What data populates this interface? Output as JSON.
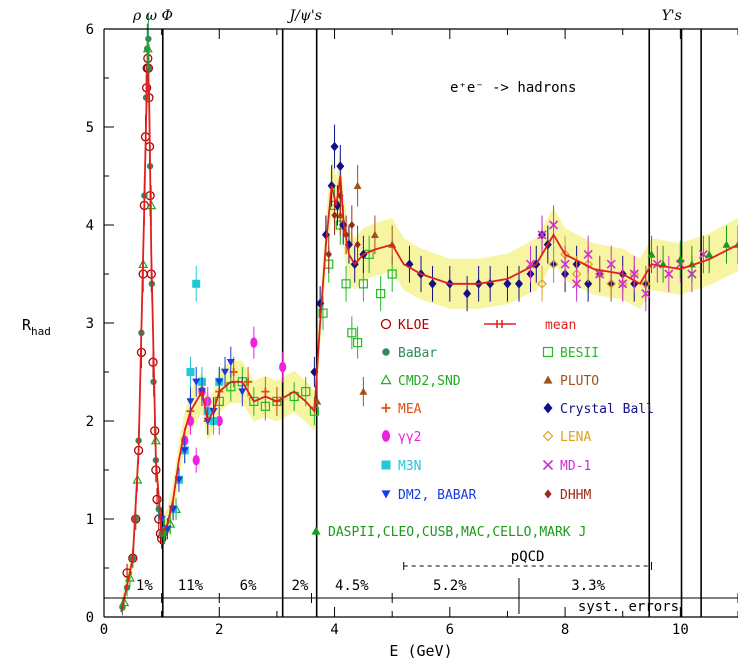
{
  "chart_data": {
    "type": "scatter",
    "xlabel": "E (GeV)",
    "ylabel_main": "R",
    "ylabel_sub": "had",
    "xlim": [
      0,
      11
    ],
    "ylim": [
      0,
      6
    ],
    "xticks": [
      0,
      2,
      4,
      6,
      8,
      10
    ],
    "yticks": [
      0,
      1,
      2,
      3,
      4,
      5,
      6
    ],
    "grid": false,
    "legend_position": "center-right",
    "process_label": "e⁺e⁻ -> hadrons",
    "resonance_labels": [
      {
        "text": "ρ ω Φ",
        "x": 0.85
      },
      {
        "text": "J/ψ's",
        "x": 3.5
      },
      {
        "text": "Υ's",
        "x": 9.85
      }
    ],
    "resonance_lines_x": [
      1.02,
      3.1,
      3.69,
      9.46,
      10.02,
      10.36
    ],
    "pqcd_label": "pQCD",
    "pqcd_range": [
      5.2,
      9.5
    ],
    "syst_label": "syst. errors",
    "syst_boundaries": [
      1.0,
      2.0,
      3.1,
      3.6,
      5.0,
      7.2,
      11.0
    ],
    "syst_values": [
      {
        "text": "1%",
        "x": 0.7
      },
      {
        "text": "11%",
        "x": 1.5
      },
      {
        "text": "6%",
        "x": 2.5
      },
      {
        "text": "2%",
        "x": 3.4
      },
      {
        "text": "4.5%",
        "x": 4.3
      },
      {
        "text": "5.2%",
        "x": 6.0
      },
      {
        "text": "3.3%",
        "x": 8.4
      }
    ],
    "legend": [
      {
        "name": "KLOE",
        "color": "#b00000",
        "marker": "circle-open"
      },
      {
        "name": "mean",
        "color": "#e02020",
        "marker": "line-cross"
      },
      {
        "name": "BaBar",
        "color": "#2e8b57",
        "marker": "dot"
      },
      {
        "name": "BESII",
        "color": "#22bb22",
        "marker": "square-open"
      },
      {
        "name": "CMD2,SND",
        "color": "#22aa22",
        "marker": "triangle-open"
      },
      {
        "name": "PLUTO",
        "color": "#a0521a",
        "marker": "triangle"
      },
      {
        "name": "MEA",
        "color": "#e05010",
        "marker": "plus"
      },
      {
        "name": "Crystal Ball",
        "color": "#10108a",
        "marker": "diamond"
      },
      {
        "name": "γγ2",
        "color": "#ee22dd",
        "marker": "ellipse"
      },
      {
        "name": "LENA",
        "color": "#e0a020",
        "marker": "diamond-open"
      },
      {
        "name": "M3N",
        "color": "#20c8d8",
        "marker": "square"
      },
      {
        "name": "MD-1",
        "color": "#d030d0",
        "marker": "cross"
      },
      {
        "name": "DM2, BABAR",
        "color": "#1a3cdc",
        "marker": "triangle-down"
      },
      {
        "name": "DHHM",
        "color": "#9a2a1a",
        "marker": "diamond-small"
      },
      {
        "name": "DASPII,CLEO,CUSB,MAC,CELLO,MARK J",
        "color": "#1a9a1a",
        "marker": "triangle"
      }
    ],
    "series": [
      {
        "name": "KLOE",
        "x": [
          0.4,
          0.5,
          0.55,
          0.6,
          0.65,
          0.68,
          0.7,
          0.72,
          0.74,
          0.75,
          0.76,
          0.77,
          0.78,
          0.79,
          0.8,
          0.82,
          0.85,
          0.88,
          0.9,
          0.92,
          0.95,
          0.98,
          1.0
        ],
        "y": [
          0.45,
          0.6,
          1.0,
          1.7,
          2.7,
          3.5,
          4.2,
          4.9,
          5.4,
          5.6,
          5.7,
          5.6,
          5.3,
          4.8,
          4.3,
          3.5,
          2.6,
          1.9,
          1.5,
          1.2,
          1.0,
          0.85,
          0.8
        ]
      },
      {
        "name": "BaBar",
        "x": [
          0.32,
          0.4,
          0.5,
          0.55,
          0.6,
          0.65,
          0.7,
          0.73,
          0.75,
          0.77,
          0.78,
          0.8,
          0.83,
          0.86,
          0.9,
          0.95,
          1.0,
          1.05,
          1.1
        ],
        "y": [
          0.1,
          0.3,
          0.6,
          1.0,
          1.8,
          2.9,
          4.3,
          5.3,
          5.8,
          5.9,
          5.6,
          4.6,
          3.4,
          2.4,
          1.6,
          1.1,
          0.85,
          0.85,
          0.9
        ]
      },
      {
        "name": "CMD2,SND",
        "x": [
          0.35,
          0.45,
          0.58,
          0.68,
          0.76,
          0.82,
          0.9,
          1.05,
          1.15,
          1.25
        ],
        "y": [
          0.15,
          0.4,
          1.4,
          3.6,
          5.8,
          4.2,
          1.8,
          0.9,
          0.95,
          1.1
        ]
      },
      {
        "name": "BESII",
        "x": [
          2.0,
          2.2,
          2.4,
          2.6,
          2.8,
          3.0,
          3.3,
          3.5,
          3.65,
          3.8,
          3.9,
          4.0,
          4.1,
          4.2,
          4.3,
          4.4,
          4.5,
          4.6,
          4.8,
          5.0
        ],
        "y": [
          2.2,
          2.35,
          2.4,
          2.2,
          2.15,
          2.2,
          2.25,
          2.3,
          2.1,
          3.1,
          3.6,
          4.2,
          4.0,
          3.4,
          2.9,
          2.8,
          3.4,
          3.7,
          3.3,
          3.5
        ]
      },
      {
        "name": "PLUTO",
        "x": [
          3.7,
          4.1,
          4.4,
          4.5,
          4.7,
          5.0
        ],
        "y": [
          2.2,
          4.1,
          4.4,
          2.3,
          3.9,
          3.8
        ]
      },
      {
        "name": "MEA",
        "x": [
          1.5,
          1.8,
          2.0,
          2.25,
          2.5,
          2.8,
          3.0
        ],
        "y": [
          2.1,
          2.0,
          2.3,
          2.5,
          2.4,
          2.3,
          2.2
        ]
      },
      {
        "name": "Crystal Ball",
        "x": [
          3.65,
          3.75,
          3.85,
          3.95,
          4.0,
          4.05,
          4.1,
          4.15,
          4.25,
          4.35,
          4.5,
          5.3,
          5.5,
          5.7,
          6.0,
          6.3,
          6.5,
          6.7,
          7.0,
          7.2,
          7.4,
          7.5,
          7.6,
          7.7,
          7.8,
          8.0,
          8.2,
          8.4,
          8.6,
          8.8,
          9.0,
          9.2,
          9.4
        ],
        "y": [
          2.5,
          3.2,
          3.9,
          4.4,
          4.8,
          4.2,
          4.6,
          4.0,
          3.8,
          3.6,
          3.7,
          3.6,
          3.5,
          3.4,
          3.4,
          3.3,
          3.4,
          3.4,
          3.4,
          3.4,
          3.5,
          3.6,
          3.9,
          3.8,
          3.6,
          3.5,
          3.6,
          3.4,
          3.5,
          3.4,
          3.5,
          3.4,
          3.4
        ]
      },
      {
        "name": "γγ2",
        "x": [
          1.4,
          1.5,
          1.6,
          1.7,
          1.8,
          2.0,
          2.6,
          3.1
        ],
        "y": [
          1.8,
          2.0,
          1.6,
          2.3,
          2.2,
          2.0,
          2.8,
          2.55
        ]
      },
      {
        "name": "LENA",
        "x": [
          7.6,
          7.8,
          8.0,
          8.2,
          8.4,
          8.6,
          8.8,
          9.0,
          9.2,
          9.4
        ],
        "y": [
          3.4,
          3.6,
          3.7,
          3.5,
          3.6,
          3.5,
          3.4,
          3.4,
          3.5,
          3.4
        ]
      },
      {
        "name": "M3N",
        "x": [
          1.2,
          1.3,
          1.4,
          1.5,
          1.6,
          1.7,
          1.8,
          1.9,
          2.0
        ],
        "y": [
          1.1,
          1.4,
          1.7,
          2.5,
          3.4,
          2.4,
          2.1,
          2.0,
          2.4
        ]
      },
      {
        "name": "MD-1",
        "x": [
          7.4,
          7.6,
          7.8,
          8.0,
          8.2,
          8.4,
          8.6,
          8.8,
          9.0,
          9.2,
          9.4,
          9.6,
          9.8,
          10.0,
          10.2,
          10.4
        ],
        "y": [
          3.6,
          3.9,
          4.0,
          3.6,
          3.4,
          3.7,
          3.5,
          3.6,
          3.4,
          3.5,
          3.3,
          3.6,
          3.5,
          3.6,
          3.5,
          3.7
        ]
      },
      {
        "name": "DM2, BABAR",
        "x": [
          1.0,
          1.1,
          1.2,
          1.3,
          1.4,
          1.5,
          1.6,
          1.7,
          1.8,
          1.9,
          2.0,
          2.1,
          2.2,
          2.4
        ],
        "y": [
          1.0,
          0.9,
          1.1,
          1.4,
          1.7,
          2.2,
          2.4,
          2.3,
          2.0,
          2.1,
          2.4,
          2.5,
          2.6,
          2.3
        ]
      },
      {
        "name": "DHHM",
        "x": [
          3.9,
          4.0,
          4.1,
          4.2,
          4.3,
          4.4
        ],
        "y": [
          3.7,
          4.1,
          4.3,
          3.9,
          4.0,
          3.8
        ]
      },
      {
        "name": "DASPII,CLEO,CUSB,MAC,CELLO,MARK J",
        "x": [
          9.5,
          9.7,
          10.0,
          10.2,
          10.5,
          10.8,
          11.0
        ],
        "y": [
          3.7,
          3.6,
          3.65,
          3.6,
          3.7,
          3.8,
          3.8
        ]
      },
      {
        "name": "mean",
        "x": [
          0.3,
          0.5,
          0.6,
          0.7,
          0.75,
          0.78,
          0.82,
          0.9,
          1.0,
          1.1,
          1.2,
          1.3,
          1.4,
          1.5,
          1.6,
          1.7,
          1.8,
          1.9,
          2.0,
          2.2,
          2.4,
          2.6,
          2.8,
          3.0,
          3.3,
          3.5,
          3.65,
          3.75,
          3.85,
          3.95,
          4.03,
          4.1,
          4.16,
          4.25,
          4.35,
          4.5,
          4.7,
          5.0,
          5.2,
          5.5,
          6.0,
          6.5,
          7.0,
          7.5,
          7.8,
          8.0,
          8.5,
          9.0,
          9.3,
          9.5,
          10.0,
          10.5,
          11.0
        ],
        "y": [
          0.05,
          0.6,
          1.7,
          4.2,
          5.6,
          5.4,
          3.7,
          1.6,
          0.85,
          0.95,
          1.2,
          1.6,
          1.9,
          2.1,
          2.2,
          2.3,
          2.0,
          2.1,
          2.3,
          2.4,
          2.4,
          2.2,
          2.25,
          2.2,
          2.3,
          2.2,
          2.1,
          3.0,
          3.8,
          4.4,
          4.2,
          4.5,
          4.0,
          3.7,
          3.6,
          3.7,
          3.75,
          3.8,
          3.6,
          3.5,
          3.4,
          3.4,
          3.45,
          3.6,
          3.9,
          3.7,
          3.55,
          3.5,
          3.4,
          3.6,
          3.55,
          3.65,
          3.8
        ]
      }
    ]
  }
}
